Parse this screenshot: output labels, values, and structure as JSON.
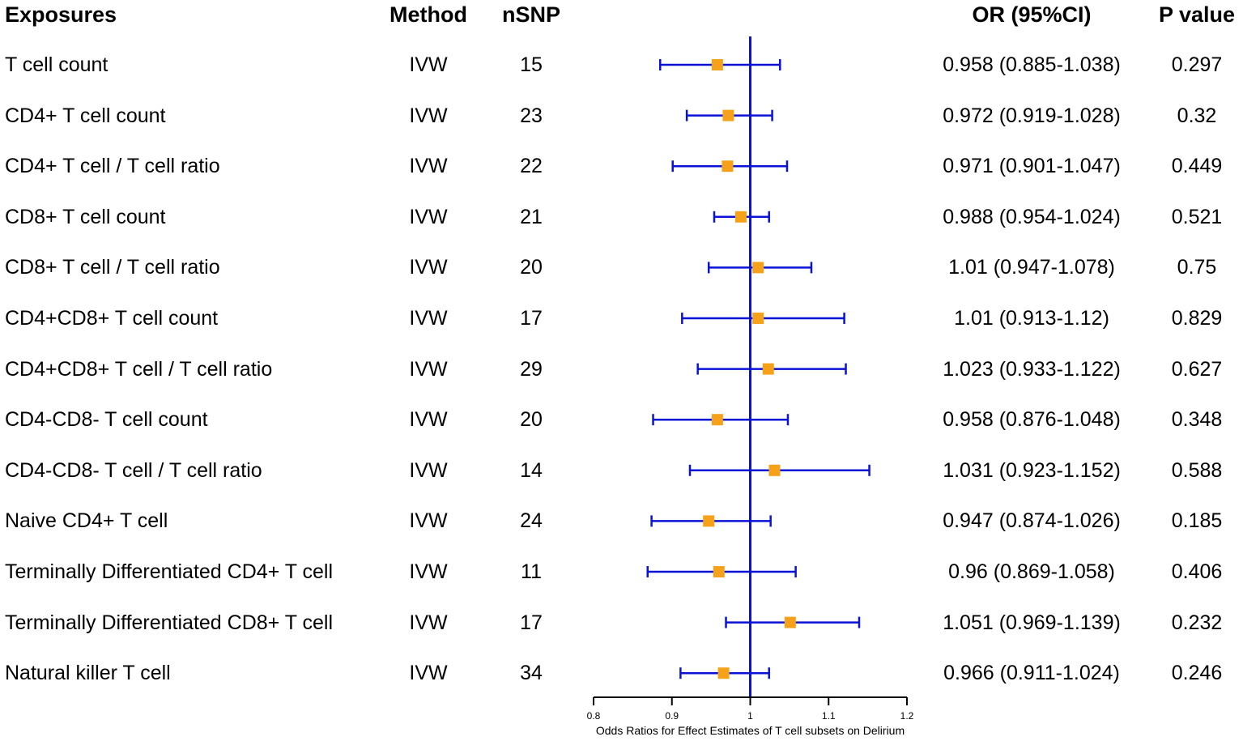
{
  "headers": {
    "exposures": "Exposures",
    "method": "Method",
    "nsnp": "nSNP",
    "or": "OR (95%CI)",
    "p": "P value"
  },
  "rows": [
    {
      "exposure": "T cell count",
      "method": "IVW",
      "nsnp": "15",
      "or_text": "0.958 (0.885-1.038)",
      "p": "0.297"
    },
    {
      "exposure": "CD4+ T cell count",
      "method": "IVW",
      "nsnp": "23",
      "or_text": "0.972 (0.919-1.028)",
      "p": "0.32"
    },
    {
      "exposure": "CD4+ T cell / T cell ratio",
      "method": "IVW",
      "nsnp": "22",
      "or_text": "0.971 (0.901-1.047)",
      "p": "0.449"
    },
    {
      "exposure": "CD8+ T cell count",
      "method": "IVW",
      "nsnp": "21",
      "or_text": "0.988 (0.954-1.024)",
      "p": "0.521"
    },
    {
      "exposure": "CD8+ T cell / T cell ratio",
      "method": "IVW",
      "nsnp": "20",
      "or_text": "1.01 (0.947-1.078)",
      "p": "0.75"
    },
    {
      "exposure": "CD4+CD8+ T cell count",
      "method": "IVW",
      "nsnp": "17",
      "or_text": "1.01 (0.913-1.12)",
      "p": "0.829"
    },
    {
      "exposure": "CD4+CD8+ T cell / T cell ratio",
      "method": "IVW",
      "nsnp": "29",
      "or_text": "1.023 (0.933-1.122)",
      "p": "0.627"
    },
    {
      "exposure": "CD4-CD8- T cell count",
      "method": "IVW",
      "nsnp": "20",
      "or_text": "0.958 (0.876-1.048)",
      "p": "0.348"
    },
    {
      "exposure": "CD4-CD8- T cell / T cell ratio",
      "method": "IVW",
      "nsnp": "14",
      "or_text": "1.031 (0.923-1.152)",
      "p": "0.588"
    },
    {
      "exposure": "Naive CD4+ T cell",
      "method": "IVW",
      "nsnp": "24",
      "or_text": "0.947 (0.874-1.026)",
      "p": "0.185"
    },
    {
      "exposure": "Terminally Differentiated CD4+ T cell",
      "method": "IVW",
      "nsnp": "11",
      "or_text": "0.96 (0.869-1.058)",
      "p": "0.406"
    },
    {
      "exposure": "Terminally Differentiated CD8+ T cell",
      "method": "IVW",
      "nsnp": "17",
      "or_text": "1.051 (0.969-1.139)",
      "p": "0.232"
    },
    {
      "exposure": "Natural killer T cell",
      "method": "IVW",
      "nsnp": "34",
      "or_text": "0.966 (0.911-1.024)",
      "p": "0.246"
    }
  ],
  "chart_data": {
    "type": "forest",
    "xlabel": "Odds Ratios for Effect Estimates of T cell subsets on Delirium",
    "xlim": [
      0.8,
      1.2
    ],
    "ticks": [
      0.8,
      0.9,
      1,
      1.1,
      1.2
    ],
    "tick_labels": [
      "0.8",
      "0.9",
      "1",
      "1.1",
      "1.2"
    ],
    "reference_line": 1,
    "estimates": [
      0.958,
      0.972,
      0.971,
      0.988,
      1.01,
      1.01,
      1.023,
      0.958,
      1.031,
      0.947,
      0.96,
      1.051,
      0.966
    ],
    "lower": [
      0.885,
      0.919,
      0.901,
      0.954,
      0.947,
      0.913,
      0.933,
      0.876,
      0.923,
      0.874,
      0.869,
      0.969,
      0.911
    ],
    "upper": [
      1.038,
      1.028,
      1.047,
      1.024,
      1.078,
      1.12,
      1.122,
      1.048,
      1.152,
      1.026,
      1.058,
      1.139,
      1.024
    ],
    "colors": {
      "ci_line": "#0a12d8",
      "marker": "#f5a21a",
      "axis": "#000000"
    }
  }
}
